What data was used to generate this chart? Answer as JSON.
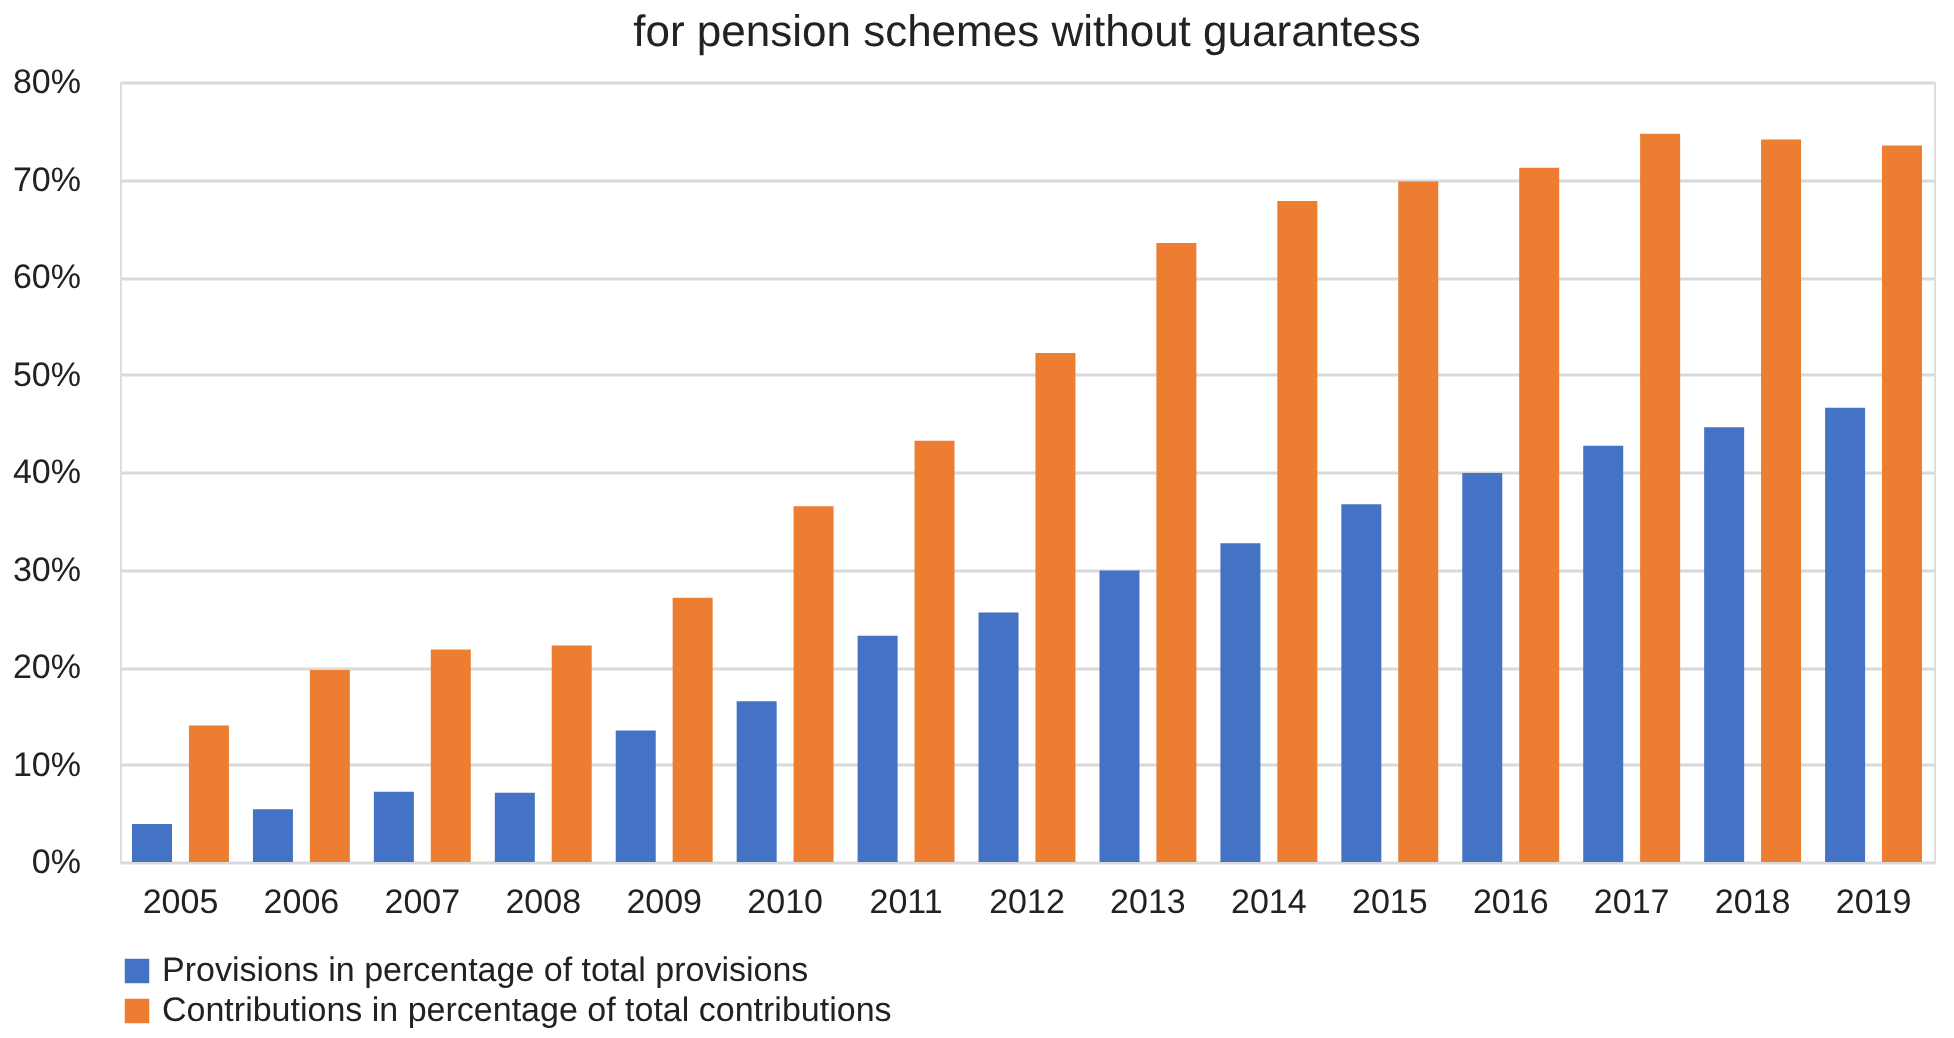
{
  "chart_data": {
    "type": "bar",
    "title": "for pension schemes without guarantess",
    "categories": [
      "2005",
      "2006",
      "2007",
      "2008",
      "2009",
      "2010",
      "2011",
      "2012",
      "2013",
      "2014",
      "2015",
      "2016",
      "2017",
      "2018",
      "2019"
    ],
    "series": [
      {
        "name": "Provisions in percentage of total provisions",
        "color": "#4472c4",
        "values": [
          3.9,
          5.4,
          7.2,
          7.1,
          13.5,
          16.5,
          23.2,
          25.6,
          29.9,
          32.7,
          36.7,
          39.9,
          42.7,
          44.6,
          46.6
        ]
      },
      {
        "name": "Contributions in percentage of total contributions",
        "color": "#ed7d31",
        "values": [
          14.0,
          19.7,
          21.8,
          22.2,
          27.1,
          36.5,
          43.2,
          52.2,
          63.5,
          67.8,
          69.8,
          71.2,
          74.7,
          74.1,
          73.5
        ]
      }
    ],
    "ylim": [
      0,
      80
    ],
    "yticks": [
      {
        "value": 0,
        "label": "0%"
      },
      {
        "value": 10,
        "label": "10%"
      },
      {
        "value": 20,
        "label": "20%"
      },
      {
        "value": 30,
        "label": "30%"
      },
      {
        "value": 40,
        "label": "40%"
      },
      {
        "value": 50,
        "label": "50%"
      },
      {
        "value": 60,
        "label": "60%"
      },
      {
        "value": 70,
        "label": "70%"
      },
      {
        "value": 80,
        "label": "80%"
      }
    ],
    "grid": "y",
    "legend": "bottom"
  }
}
